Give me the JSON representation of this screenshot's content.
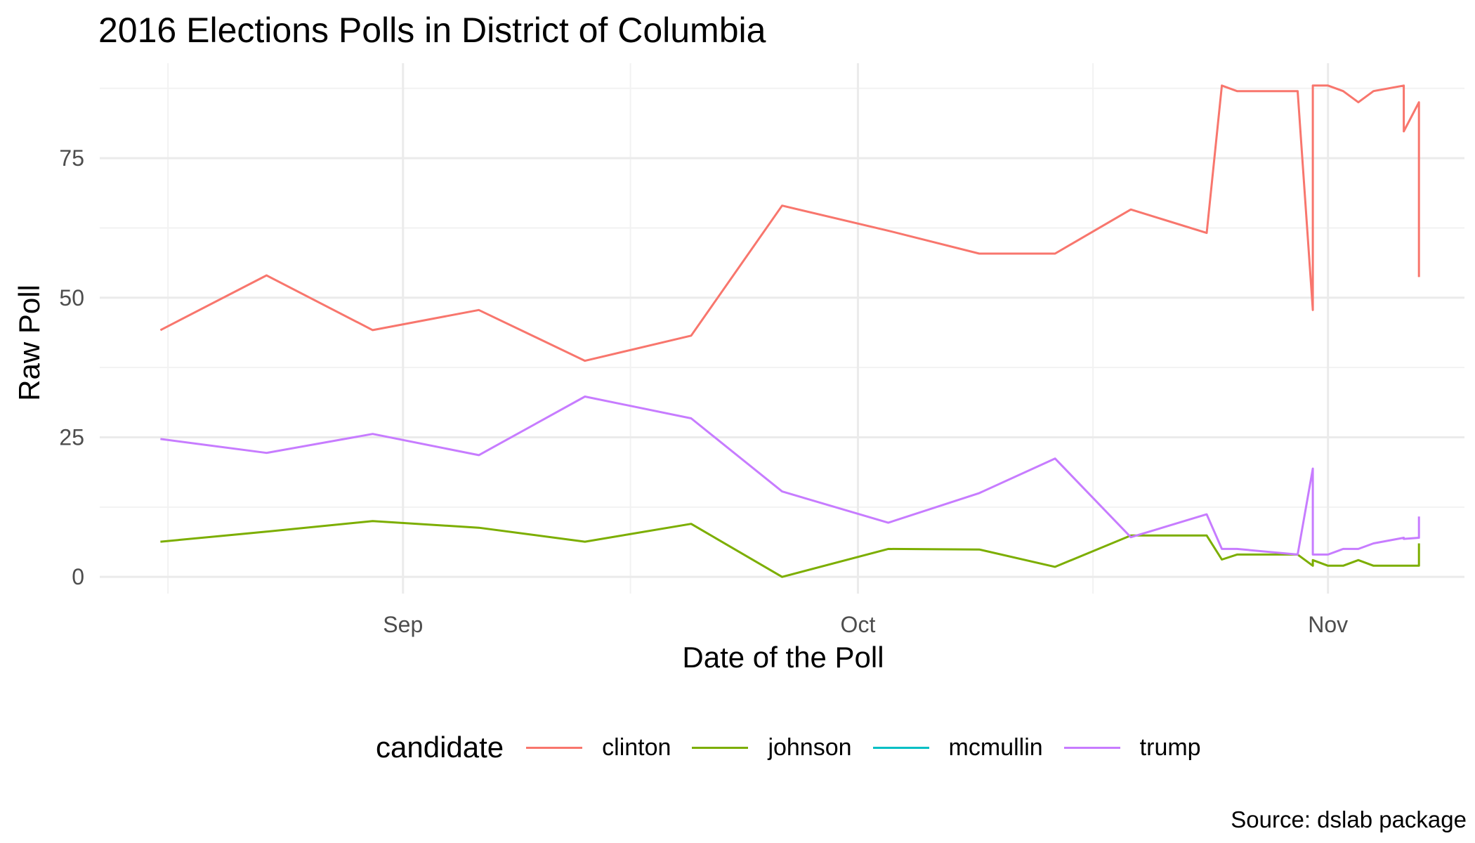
{
  "chart_data": {
    "type": "line",
    "title": "2016 Elections Polls in District of Columbia",
    "xlabel": "Date of the Poll",
    "ylabel": "Raw Poll",
    "caption": "Source: dslab package",
    "x_ticks": [
      {
        "label": "Sep",
        "day": 32
      },
      {
        "label": "Oct",
        "day": 62
      },
      {
        "label": "Nov",
        "day": 93
      }
    ],
    "x_minor_ticks": [
      16.5,
      47,
      77.5
    ],
    "xlim": [
      12,
      102
    ],
    "y_ticks": [
      0,
      25,
      50,
      75
    ],
    "y_minor_ticks": [
      12.5,
      37.5,
      62.5,
      87.5
    ],
    "ylim": [
      -3,
      92
    ],
    "legend_title": "candidate",
    "series": [
      {
        "name": "clinton",
        "color": "#F8766D",
        "points": [
          [
            16,
            44.2
          ],
          [
            23,
            54
          ],
          [
            30,
            44.2
          ],
          [
            37,
            47.8
          ],
          [
            44,
            38.7
          ],
          [
            51,
            43.2
          ],
          [
            57,
            66.5
          ],
          [
            64,
            62
          ],
          [
            70,
            57.9
          ],
          [
            75,
            57.9
          ],
          [
            80,
            65.8
          ],
          [
            85,
            61.6
          ],
          [
            86,
            88
          ],
          [
            87,
            87
          ],
          [
            91,
            87
          ],
          [
            92,
            47.8
          ],
          [
            92,
            88
          ],
          [
            93,
            88
          ],
          [
            94,
            87
          ],
          [
            95,
            85
          ],
          [
            96,
            87
          ],
          [
            98,
            88
          ],
          [
            98,
            79.8
          ],
          [
            99,
            85
          ],
          [
            99,
            53.7
          ]
        ]
      },
      {
        "name": "johnson",
        "color": "#7CAE00",
        "points": [
          [
            16,
            6.3
          ],
          [
            23,
            8.1
          ],
          [
            30,
            10
          ],
          [
            37,
            8.8
          ],
          [
            44,
            6.3
          ],
          [
            51,
            9.5
          ],
          [
            57,
            0
          ],
          [
            64,
            5
          ],
          [
            70,
            4.9
          ],
          [
            75,
            1.8
          ],
          [
            80,
            7.4
          ],
          [
            85,
            7.4
          ],
          [
            86,
            3.1
          ],
          [
            87,
            4
          ],
          [
            91,
            4
          ],
          [
            92,
            2
          ],
          [
            92,
            3
          ],
          [
            93,
            2
          ],
          [
            94,
            2
          ],
          [
            95,
            3
          ],
          [
            96,
            2
          ],
          [
            98,
            2
          ],
          [
            98,
            2
          ],
          [
            99,
            2
          ],
          [
            99,
            6
          ]
        ]
      },
      {
        "name": "mcmullin",
        "color": "#00BFC4",
        "points": []
      },
      {
        "name": "trump",
        "color": "#C77CFF",
        "points": [
          [
            16,
            24.7
          ],
          [
            23,
            22.2
          ],
          [
            30,
            25.6
          ],
          [
            37,
            21.8
          ],
          [
            44,
            32.3
          ],
          [
            51,
            28.4
          ],
          [
            57,
            15.3
          ],
          [
            64,
            9.7
          ],
          [
            70,
            15
          ],
          [
            75,
            21.2
          ],
          [
            80,
            7.1
          ],
          [
            85,
            11.2
          ],
          [
            86,
            5
          ],
          [
            87,
            5
          ],
          [
            91,
            4
          ],
          [
            92,
            19.4
          ],
          [
            92,
            4
          ],
          [
            93,
            4
          ],
          [
            94,
            5
          ],
          [
            95,
            5
          ],
          [
            96,
            6
          ],
          [
            98,
            7
          ],
          [
            98,
            6.8
          ],
          [
            99,
            7
          ],
          [
            99,
            10.8
          ]
        ]
      }
    ]
  }
}
